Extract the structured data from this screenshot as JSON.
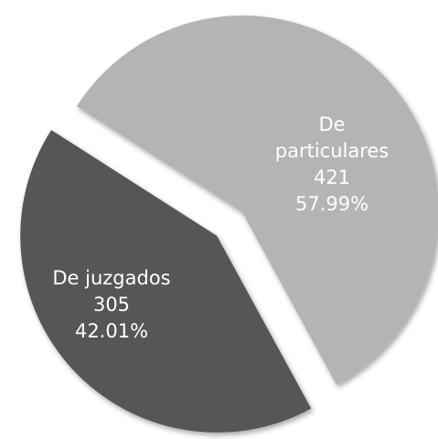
{
  "chart_data": {
    "type": "pie",
    "categories": [
      "De particulares",
      "De juzgados"
    ],
    "values": [
      421,
      305
    ],
    "percent_labels": [
      "57.99%",
      "42.01%"
    ],
    "colors": [
      "#b4b4b4",
      "#575757"
    ]
  }
}
